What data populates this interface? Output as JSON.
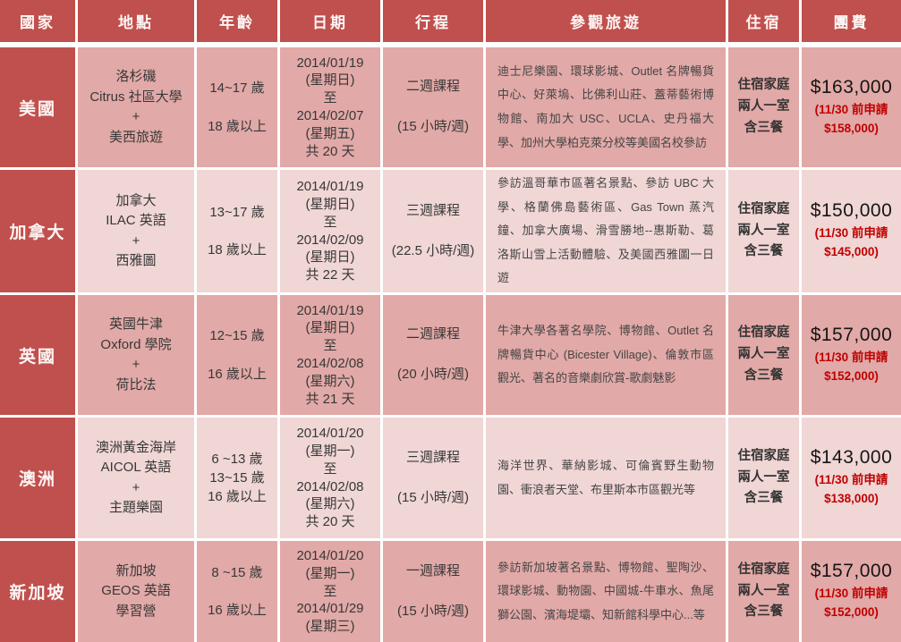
{
  "colors": {
    "accent_red": "#C0504D",
    "band_dark": "#E1A9A7",
    "band_light": "#F0D6D5",
    "discount_red": "#C00000"
  },
  "table": {
    "headers": [
      "國家",
      "地點",
      "年齡",
      "日期",
      "行程",
      "參觀旅遊",
      "住宿",
      "團費"
    ],
    "rows": [
      {
        "country": "美國",
        "location": "洛杉磯\nCitrus 社區大學\n+\n美西旅遊",
        "age": "14~17 歲\n\n18 歲以上",
        "date": "2014/01/19\n(星期日)\n至\n2014/02/07\n(星期五)\n共 20 天",
        "course": "二週課程\n\n(15 小時/週)",
        "tour": "迪士尼樂園、環球影城、Outlet 名牌暢貨中心、好萊塢、比佛利山莊、蓋蒂藝術博物館、南加大 USC、UCLA、史丹福大學、加州大學柏克萊分校等美國名校參訪",
        "stay": "住宿家庭\n兩人一室\n含三餐",
        "price": "$163,000",
        "price_note": "(11/30 前申請\n$158,000)"
      },
      {
        "country": "加拿大",
        "location": "加拿大\nILAC 英語\n+\n西雅圖",
        "age": "13~17 歲\n\n18 歲以上",
        "date": "2014/01/19\n(星期日)\n至\n2014/02/09\n(星期日)\n共 22 天",
        "course": "三週課程\n\n(22.5 小時/週)",
        "tour": "參訪溫哥華市區著名景點、參訪 UBC 大學、格蘭佛島藝術區、Gas Town 蒸汽鐘、加拿大廣場、滑雪勝地--惠斯勒、葛洛斯山雪上活動體驗、及美國西雅圖一日遊",
        "stay": "住宿家庭\n兩人一室\n含三餐",
        "price": "$150,000",
        "price_note": "(11/30 前申請\n$145,000)"
      },
      {
        "country": "英國",
        "location": "英國牛津\nOxford 學院\n+\n荷比法",
        "age": "12~15 歲\n\n16 歲以上",
        "date": "2014/01/19\n(星期日)\n至\n2014/02/08\n(星期六)\n共 21 天",
        "course": "二週課程\n\n(20 小時/週)",
        "tour": "牛津大學各著名學院、博物館、Outlet 名牌暢貨中心 (Bicester Village)、倫敦市區觀光、著名的音樂劇欣賞-歌劇魅影",
        "stay": "住宿家庭\n兩人一室\n含三餐",
        "price": "$157,000",
        "price_note": "(11/30 前申請\n$152,000)"
      },
      {
        "country": "澳洲",
        "location": "澳洲黃金海岸\nAICOL 英語\n+\n主題樂園",
        "age": "6 ~13 歲\n13~15 歲\n16 歲以上",
        "date": "2014/01/20\n(星期一)\n至\n2014/02/08\n(星期六)\n共 20 天",
        "course": "三週課程\n\n(15 小時/週)",
        "tour": "海洋世界、華納影城、可倫賓野生動物園、衝浪者天堂、布里斯本市區觀光等",
        "stay": "住宿家庭\n兩人一室\n含三餐",
        "price": "$143,000",
        "price_note": "(11/30 前申請\n$138,000)"
      },
      {
        "country": "新加坡",
        "location": "新加坡\nGEOS 英語\n學習營",
        "age": "8 ~15 歲\n\n16 歲以上",
        "date": "2014/01/20\n(星期一)\n至\n2014/01/29\n(星期三)",
        "course": "一週課程\n\n(15 小時/週)",
        "tour": "參訪新加坡著名景點、博物館、聖陶沙、環球影城、動物園、中國城-牛車水、魚尾獅公園、濱海堤壩、知新館科學中心...等",
        "stay": "住宿家庭\n兩人一室\n含三餐",
        "price": "$157,000",
        "price_note": "(11/30 前申請\n$152,000)"
      }
    ]
  }
}
